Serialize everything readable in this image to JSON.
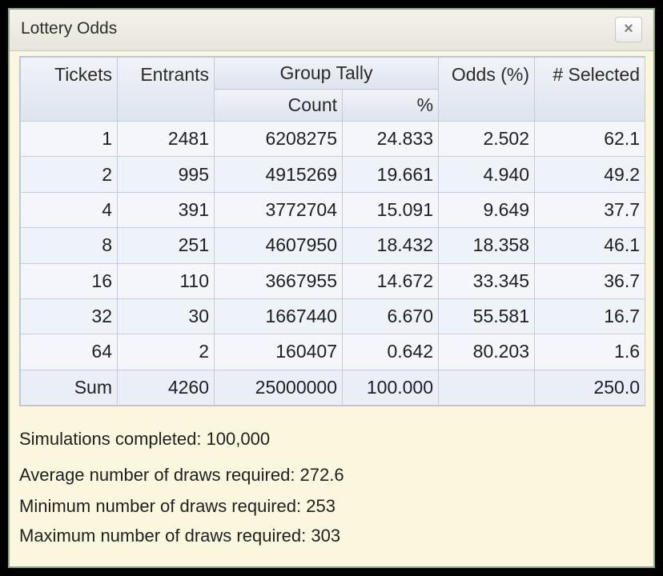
{
  "window": {
    "title": "Lottery Odds",
    "close_glyph": "×"
  },
  "table": {
    "headers": {
      "tickets": "Tickets",
      "entrants": "Entrants",
      "group_tally": "Group Tally",
      "count": "Count",
      "percent": "%",
      "odds": "Odds (%)",
      "selected": "# Selected"
    },
    "rows": [
      {
        "tickets": "1",
        "entrants": "2481",
        "count": "6208275",
        "percent": "24.833",
        "odds": "2.502",
        "selected": "62.1"
      },
      {
        "tickets": "2",
        "entrants": "995",
        "count": "4915269",
        "percent": "19.661",
        "odds": "4.940",
        "selected": "49.2"
      },
      {
        "tickets": "4",
        "entrants": "391",
        "count": "3772704",
        "percent": "15.091",
        "odds": "9.649",
        "selected": "37.7"
      },
      {
        "tickets": "8",
        "entrants": "251",
        "count": "4607950",
        "percent": "18.432",
        "odds": "18.358",
        "selected": "46.1"
      },
      {
        "tickets": "16",
        "entrants": "110",
        "count": "3667955",
        "percent": "14.672",
        "odds": "33.345",
        "selected": "36.7"
      },
      {
        "tickets": "32",
        "entrants": "30",
        "count": "1667440",
        "percent": "6.670",
        "odds": "55.581",
        "selected": "16.7"
      },
      {
        "tickets": "64",
        "entrants": "2",
        "count": "160407",
        "percent": "0.642",
        "odds": "80.203",
        "selected": "1.6"
      }
    ],
    "sum": {
      "label": "Sum",
      "entrants": "4260",
      "count": "25000000",
      "percent": "100.000",
      "odds": "",
      "selected": "250.0"
    }
  },
  "stats": {
    "simulations": "Simulations completed: 100,000",
    "average": "Average number of draws required: 272.6",
    "minimum": "Minimum number of draws required: 253",
    "maximum": "Maximum number of draws required: 303"
  },
  "colors": {
    "panel_background": "#fbf7df",
    "window_border": "#8ea98a",
    "header_background": "#dde4ee",
    "row_background": "#eef2f9"
  },
  "icons": {
    "close": "close-icon"
  }
}
